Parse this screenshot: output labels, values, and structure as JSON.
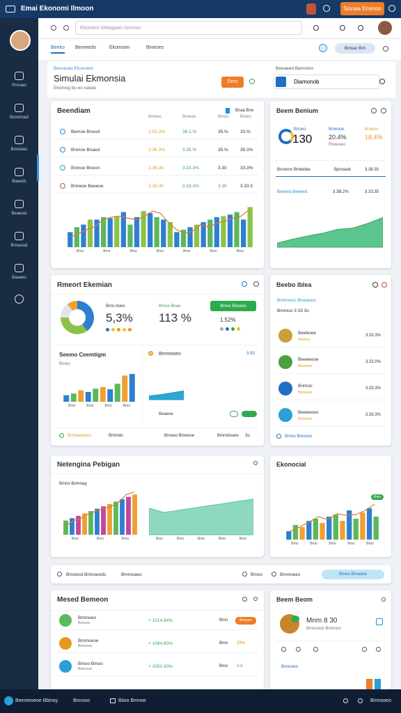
{
  "topbar": {
    "title": "Emai Ekonomi Ilmoon",
    "button": "Sinnaa Emmoo"
  },
  "sidebar": {
    "items": [
      "Rnmaei",
      "Bonomadi",
      "Bmmeeo",
      "Baeeds",
      "Beaeooi",
      "Bnnaood",
      "Baaeeo"
    ]
  },
  "browser": {
    "search": "Ekonomi Sebagaan Smmoo"
  },
  "tabs": [
    "Beeko",
    "Bemeedo",
    "Ekomoon",
    "Bineoes"
  ],
  "tab_pill": "Bmiao Bm",
  "header": {
    "kicker": "Bemaoao Ekonoem",
    "title": "Simulai Ekmonsia",
    "subtitle": "Ekomog bo eo oaoes",
    "button": "Dmo",
    "right_label": "Beeaeed Bamomo",
    "right_box": "Diamonob"
  },
  "card1": {
    "title": "Beendiam",
    "action": "Bnaa Bne",
    "columns": [
      "Bmeeo",
      "Bmeoe",
      "Bmoo",
      "Bmeo"
    ],
    "rows": [
      {
        "name": "Bemoe Bneod",
        "cells": [
          "3.53.3%",
          "36.1.%",
          "35.%",
          "33.%"
        ]
      },
      {
        "name": "Bnmoe Bnaed",
        "cells": [
          "3.38.3%",
          "3.35.%",
          "35.%",
          "35.3%"
        ]
      },
      {
        "name": "Bnmoe Bneon",
        "cells": [
          "3.38.30",
          "3.33.3%",
          "3.30",
          "33.3%"
        ]
      },
      {
        "name": "Bnneoe Beeeoe",
        "cells": [
          "3.38.30",
          "3.33.3%",
          "3.30",
          "3.33.5"
        ]
      }
    ],
    "chart": {
      "ylim": [
        0,
        100
      ],
      "values": [
        30,
        40,
        45,
        55,
        55,
        60,
        58,
        62,
        70,
        45,
        60,
        72,
        68,
        60,
        55,
        50,
        30,
        35,
        40,
        45,
        50,
        55,
        60,
        62,
        65,
        70,
        55,
        80
      ],
      "line": [
        20,
        28,
        35,
        42,
        55,
        60,
        62,
        58,
        55,
        60,
        72,
        68,
        50,
        35,
        28,
        32,
        45,
        40,
        48,
        52,
        58,
        62,
        75
      ],
      "colors": [
        "#2f7fd1",
        "#5cb85c",
        "#2f7fd1",
        "#8bc34a"
      ],
      "xlabels": [
        "Bmo",
        "Bmo",
        "Bmy",
        "Bmo",
        "Bmo",
        "Bmo",
        "Bmo"
      ]
    }
  },
  "card1r": {
    "title": "Beem Benium",
    "big_label": "Bnoeo",
    "big": "130",
    "s1_label": "Bmeooe",
    "s1": "20.4%",
    "s2_label": "Bmeoo",
    "s2": "18.4%",
    "sub": "Rneeoeo",
    "row1": [
      "Bnnenm Bmbebie",
      "Bpnoaeb",
      "3.38.30"
    ],
    "row2": [
      "Bneeoa Beeeed",
      "3.3B.2%",
      "3.33.35"
    ],
    "chart": {
      "ylim": [
        0,
        100
      ],
      "values": [
        10,
        20,
        28,
        35,
        45,
        48,
        60,
        75
      ]
    }
  },
  "card2": {
    "title": "Rmeort Ekemian",
    "donut": [
      40,
      35,
      15,
      10
    ],
    "donut_colors": [
      "#2f7fd1",
      "#8bc34a",
      "#e0e4ea",
      "#f0a030"
    ],
    "k1_label": "Bmo Aoeo",
    "k1": "5,3%",
    "k2_label": "Bmoe Bnae",
    "k2": "113 %",
    "button": "Bneo Beeeio",
    "k3": "1.52%",
    "sub_title": "Seemo Ceemtigm",
    "sub_label": "Bmeo",
    "bars": {
      "ylim": [
        0,
        100
      ],
      "values": [
        20,
        25,
        35,
        30,
        40,
        45,
        38,
        55,
        80,
        85
      ],
      "colors": [
        "#2f7fd1",
        "#5cb85c",
        "#f0a030"
      ],
      "xlabels": [
        "Bmo",
        "Bmo",
        "Bmo",
        "Bmo"
      ]
    },
    "right_title": "Bmmooeo",
    "right_value": "3.50",
    "area": {
      "ylim": [
        0,
        100
      ],
      "values": [
        30,
        40,
        55,
        70
      ]
    },
    "right_foot": "Beaeoe",
    "foot": [
      "Bmmaoooeo",
      "Bmmdo",
      "Bmoeo Bmeooe",
      "Bmmdooee",
      "3o"
    ]
  },
  "card2r": {
    "title": "Beebo Iblea",
    "sub1": "Bnmoeoo Bneaoeo",
    "sub2": "Bmmoo 3 33 3o",
    "rows": [
      {
        "name": "Beeboee",
        "sub": "Bmeoo",
        "value": "3.33.3%"
      },
      {
        "name": "Beeeeooe",
        "sub": "Bmeooe",
        "value": "3.33.0%"
      },
      {
        "name": "Bnmoo",
        "sub": "Bmeeoe",
        "value": "3.33.3%"
      },
      {
        "name": "Beeeeoeo",
        "sub": "Bmeooe",
        "value": "3.33.3%"
      }
    ],
    "foot": "Bmoo Bmooos"
  },
  "card3": {
    "title": "Netengina Pebigan",
    "chart_label": "Bmoo Bomoag",
    "bars": {
      "ylim": [
        0,
        100
      ],
      "values": [
        30,
        35,
        40,
        45,
        50,
        55,
        60,
        65,
        70,
        75,
        80,
        85
      ],
      "line": [
        20,
        30,
        35,
        45,
        50,
        55,
        60,
        70,
        85,
        90
      ],
      "colors": [
        "#5cb85c",
        "#2f7fd1",
        "#c2489a",
        "#f0a030"
      ],
      "xlabels": [
        "Bmo",
        "Bmo",
        "Bmo"
      ]
    },
    "area": {
      "ylim": [
        0,
        100
      ],
      "values": [
        60,
        50,
        55,
        60,
        65,
        70,
        75,
        80
      ],
      "xlabels": [
        "Bmo",
        "Bmo",
        "Bmo",
        "Bmo",
        "Bmo"
      ]
    }
  },
  "card3r": {
    "title": "Ekonocial",
    "tag": "Bmo",
    "bars": {
      "ylim": [
        0,
        100
      ],
      "values": [
        20,
        35,
        30,
        45,
        50,
        40,
        55,
        60,
        45,
        70,
        50,
        65,
        75,
        55
      ],
      "line": [
        20,
        30,
        42,
        55,
        48,
        62,
        58,
        60,
        70,
        85
      ],
      "colors": [
        "#2f7fd1",
        "#5cb85c",
        "#f0a030"
      ],
      "xlabels": [
        "Bmo",
        "Bmo",
        "Bmo",
        "Bmo",
        "Bmo"
      ]
    }
  },
  "strip": [
    "Bmoeod Bnmoeods",
    "Bmmoaeo",
    "Bmoo",
    "Bmmoees",
    "Bmeo Bmaooe"
  ],
  "card4": {
    "title": "Mesed Bemeon",
    "rows": [
      {
        "name": "Bmmoeo",
        "sub": "Bmooe",
        "value": "+ 1014.84%",
        "col": "Bmo",
        "tag": "Bmoeo"
      },
      {
        "name": "Bmmoeoe",
        "sub": "Bmooeo",
        "value": "+ 1084.80%",
        "col": "Bmo",
        "tag": "39%"
      },
      {
        "name": "Bmoo Bmoo",
        "sub": "Bmoooe",
        "value": "+ 1050.30%",
        "col": "Bmo",
        "tag": "3.3"
      }
    ]
  },
  "card4r": {
    "title": "Beem Beom",
    "name": "Mnm 8 30",
    "sub": "Bmnoooe Bmenoo",
    "link": "Bmooeo"
  },
  "bottom": {
    "left": "Beemeoeoe Bbinoy",
    "mid1": "Bnnooo",
    "mid2": "Biioo Bmnoe",
    "right": "Bnmooeo"
  }
}
